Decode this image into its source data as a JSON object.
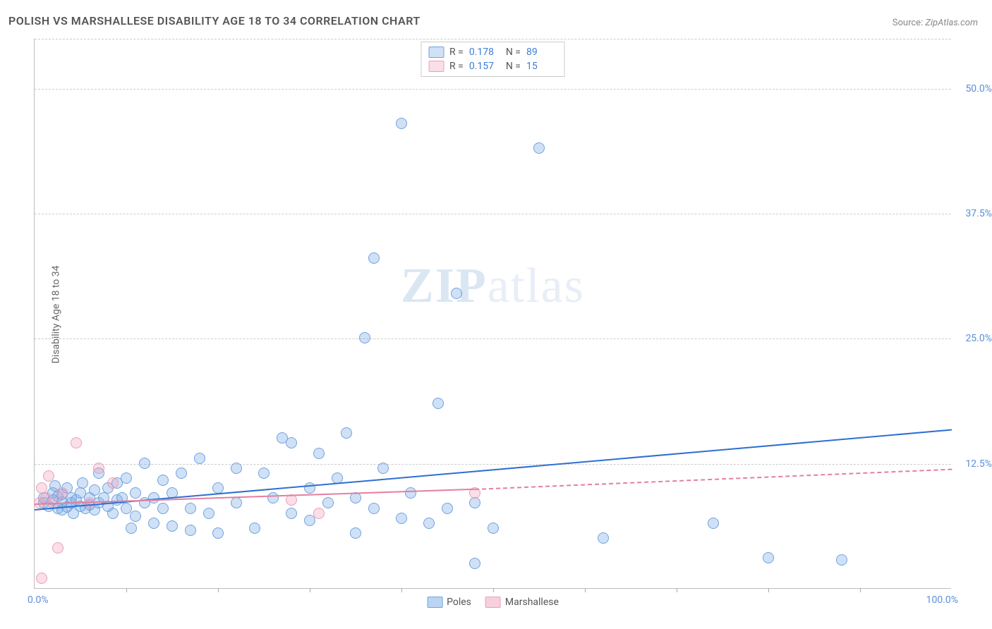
{
  "title": "POLISH VS MARSHALLESE DISABILITY AGE 18 TO 34 CORRELATION CHART",
  "source_label": "Source:",
  "source_value": "ZipAtlas.com",
  "ylabel": "Disability Age 18 to 34",
  "watermark_a": "ZIP",
  "watermark_b": "atlas",
  "chart": {
    "type": "scatter",
    "xlim": [
      0,
      100
    ],
    "ylim": [
      0,
      55
    ],
    "x_tick_step_pct": 10,
    "x_min_label": "0.0%",
    "x_max_label": "100.0%",
    "y_ticks": [
      {
        "v": 12.5,
        "label": "12.5%"
      },
      {
        "v": 25.0,
        "label": "25.0%"
      },
      {
        "v": 37.5,
        "label": "37.5%"
      },
      {
        "v": 50.0,
        "label": "50.0%"
      }
    ],
    "background_color": "#ffffff",
    "grid_color": "#cccccc",
    "axis_label_color": "#5b8fd6",
    "series": [
      {
        "name": "Poles",
        "color_fill": "rgba(120,170,230,0.35)",
        "color_stroke": "#6fa3e0",
        "trend_color": "#2e6fd1",
        "trend_dash": "solid",
        "trend": {
          "x1": 0,
          "y1": 8.0,
          "x2": 100,
          "y2": 16.0
        },
        "r_label": "R =",
        "r_value": "0.178",
        "n_label": "N =",
        "n_value": "89",
        "marker_radius": 8,
        "points": [
          [
            1,
            8.5
          ],
          [
            1,
            9.0
          ],
          [
            1.5,
            8.2
          ],
          [
            2,
            8.8
          ],
          [
            2,
            9.5
          ],
          [
            2.2,
            10.2
          ],
          [
            2.5,
            8.0
          ],
          [
            2.5,
            9.2
          ],
          [
            3,
            7.8
          ],
          [
            3,
            8.6
          ],
          [
            3,
            9.4
          ],
          [
            3.5,
            8.1
          ],
          [
            3.5,
            10.0
          ],
          [
            4,
            8.5
          ],
          [
            4,
            9.0
          ],
          [
            4.2,
            7.5
          ],
          [
            4.5,
            8.8
          ],
          [
            5,
            8.2
          ],
          [
            5,
            9.5
          ],
          [
            5.2,
            10.5
          ],
          [
            5.5,
            8.0
          ],
          [
            6,
            9.0
          ],
          [
            6,
            8.3
          ],
          [
            6.5,
            7.8
          ],
          [
            6.5,
            9.8
          ],
          [
            7,
            8.5
          ],
          [
            7,
            11.5
          ],
          [
            7.5,
            9.0
          ],
          [
            8,
            8.2
          ],
          [
            8,
            10.0
          ],
          [
            8.5,
            7.5
          ],
          [
            9,
            8.8
          ],
          [
            9,
            10.5
          ],
          [
            9.5,
            9.0
          ],
          [
            10,
            8.0
          ],
          [
            10,
            11.0
          ],
          [
            10.5,
            6.0
          ],
          [
            11,
            9.5
          ],
          [
            11,
            7.2
          ],
          [
            12,
            8.5
          ],
          [
            12,
            12.5
          ],
          [
            13,
            9.0
          ],
          [
            13,
            6.5
          ],
          [
            14,
            8.0
          ],
          [
            14,
            10.8
          ],
          [
            15,
            9.5
          ],
          [
            15,
            6.2
          ],
          [
            16,
            11.5
          ],
          [
            17,
            8.0
          ],
          [
            17,
            5.8
          ],
          [
            18,
            13.0
          ],
          [
            19,
            7.5
          ],
          [
            20,
            10.0
          ],
          [
            20,
            5.5
          ],
          [
            22,
            12.0
          ],
          [
            22,
            8.5
          ],
          [
            24,
            6.0
          ],
          [
            25,
            11.5
          ],
          [
            26,
            9.0
          ],
          [
            27,
            15.0
          ],
          [
            28,
            7.5
          ],
          [
            28,
            14.5
          ],
          [
            30,
            10.0
          ],
          [
            30,
            6.8
          ],
          [
            31,
            13.5
          ],
          [
            32,
            8.5
          ],
          [
            33,
            11.0
          ],
          [
            34,
            15.5
          ],
          [
            35,
            9.0
          ],
          [
            35,
            5.5
          ],
          [
            36,
            25.0
          ],
          [
            37,
            8.0
          ],
          [
            37,
            33.0
          ],
          [
            38,
            12.0
          ],
          [
            40,
            46.5
          ],
          [
            40,
            7.0
          ],
          [
            41,
            9.5
          ],
          [
            43,
            6.5
          ],
          [
            44,
            18.5
          ],
          [
            45,
            8.0
          ],
          [
            46,
            29.5
          ],
          [
            48,
            8.5
          ],
          [
            48,
            2.5
          ],
          [
            50,
            6.0
          ],
          [
            55,
            44.0
          ],
          [
            62,
            5.0
          ],
          [
            74,
            6.5
          ],
          [
            80,
            3.0
          ],
          [
            88,
            2.8
          ]
        ]
      },
      {
        "name": "Marshallese",
        "color_fill": "rgba(240,160,190,0.35)",
        "color_stroke": "#e8a0b8",
        "trend_color": "#e37fa0",
        "trend_dash": "solid_then_dashed",
        "trend": {
          "x1": 0,
          "y1": 8.5,
          "x2": 48,
          "y2": 10.0,
          "x3": 100,
          "y3": 12.0
        },
        "r_label": "R =",
        "r_value": "0.157",
        "n_label": "N =",
        "n_value": "15",
        "marker_radius": 8,
        "points": [
          [
            0.5,
            8.5
          ],
          [
            0.8,
            10.0
          ],
          [
            0.8,
            1.0
          ],
          [
            1.2,
            9.0
          ],
          [
            1.5,
            11.2
          ],
          [
            2.0,
            8.5
          ],
          [
            2.5,
            4.0
          ],
          [
            3.0,
            9.5
          ],
          [
            4.5,
            14.5
          ],
          [
            6.0,
            8.5
          ],
          [
            7.0,
            12.0
          ],
          [
            8.5,
            10.5
          ],
          [
            28.0,
            8.8
          ],
          [
            31.0,
            7.5
          ],
          [
            48.0,
            9.5
          ]
        ]
      }
    ]
  },
  "legend_bottom": [
    {
      "name": "Poles",
      "fill": "rgba(120,170,230,0.5)",
      "stroke": "#6fa3e0"
    },
    {
      "name": "Marshallese",
      "fill": "rgba(240,160,190,0.5)",
      "stroke": "#e8a0b8"
    }
  ]
}
